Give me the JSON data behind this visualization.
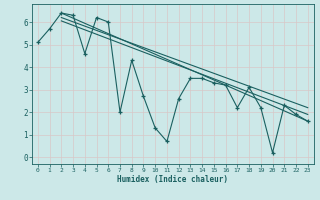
{
  "xlabel": "Humidex (Indice chaleur)",
  "bg_color": "#cce8e8",
  "grid_color": "#b0d8d8",
  "line_color": "#1a6060",
  "xlim": [
    -0.5,
    23.5
  ],
  "ylim": [
    -0.3,
    6.8
  ],
  "xticks": [
    0,
    1,
    2,
    3,
    4,
    5,
    6,
    7,
    8,
    9,
    10,
    11,
    12,
    13,
    14,
    15,
    16,
    17,
    18,
    19,
    20,
    21,
    22,
    23
  ],
  "yticks": [
    0,
    1,
    2,
    3,
    4,
    5,
    6
  ],
  "main_series_x": [
    0,
    1,
    2,
    3,
    4,
    5,
    6,
    7,
    8,
    9,
    10,
    11,
    12,
    13,
    14,
    15,
    16,
    17,
    18,
    19,
    20,
    21,
    22,
    23
  ],
  "main_series_y": [
    5.1,
    5.7,
    6.4,
    6.3,
    4.6,
    6.2,
    6.0,
    2.0,
    4.3,
    2.7,
    1.3,
    0.7,
    2.6,
    3.5,
    3.5,
    3.3,
    3.2,
    2.2,
    3.1,
    2.2,
    0.2,
    2.3,
    1.9,
    1.6
  ],
  "trend1_x": [
    2,
    23
  ],
  "trend1_y": [
    6.4,
    1.6
  ],
  "trend2_x": [
    2,
    23
  ],
  "trend2_y": [
    6.2,
    2.2
  ],
  "trend3_x": [
    2,
    23
  ],
  "trend3_y": [
    6.05,
    1.9
  ]
}
